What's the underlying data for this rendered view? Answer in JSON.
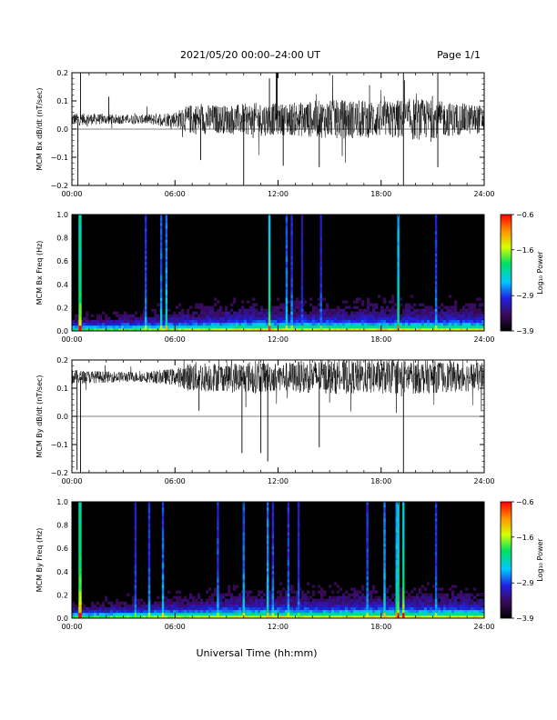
{
  "header": {
    "title": "2021/05/20  00:00–24:00 UT",
    "page": "Page 1/1"
  },
  "xlabel": "Universal Time (hh:mm)",
  "chart_data": [
    {
      "type": "line",
      "ylabel": "MCM Bx dB/dt (nT/sec)",
      "xlim": [
        0,
        24
      ],
      "ylim": [
        -0.2,
        0.2
      ],
      "x_ticks": [
        "00:00",
        "06:00",
        "12:00",
        "18:00",
        "24:00"
      ],
      "y_ticks": [
        "0.2",
        "0.1",
        "0.0",
        "−0.1",
        "−0.2"
      ],
      "baseline": 0.035,
      "activity": [
        {
          "t": 0.0,
          "amp": 0.022
        },
        {
          "t": 2.0,
          "amp": 0.018
        },
        {
          "t": 4.0,
          "amp": 0.016
        },
        {
          "t": 6.0,
          "amp": 0.028
        },
        {
          "t": 7.0,
          "amp": 0.055
        },
        {
          "t": 9.0,
          "amp": 0.05
        },
        {
          "t": 11.0,
          "amp": 0.06
        },
        {
          "t": 12.0,
          "amp": 0.055
        },
        {
          "t": 14.0,
          "amp": 0.065
        },
        {
          "t": 16.0,
          "amp": 0.07
        },
        {
          "t": 18.0,
          "amp": 0.065
        },
        {
          "t": 20.0,
          "amp": 0.075
        },
        {
          "t": 22.0,
          "amp": 0.06
        },
        {
          "t": 24.0,
          "amp": 0.05
        }
      ],
      "spikes": [
        {
          "t": 0.35,
          "y": -0.2
        },
        {
          "t": 0.5,
          "y": 0.2
        },
        {
          "t": 2.15,
          "y": 0.115
        },
        {
          "t": 7.5,
          "y": -0.11
        },
        {
          "t": 10.0,
          "y": -0.195
        },
        {
          "t": 11.5,
          "y": 0.18
        },
        {
          "t": 11.9,
          "y": 0.2
        },
        {
          "t": 11.95,
          "y": 0.2
        },
        {
          "t": 12.3,
          "y": -0.13
        },
        {
          "t": 14.4,
          "y": -0.135
        },
        {
          "t": 19.3,
          "y": -0.2
        },
        {
          "t": 19.3,
          "y": 0.2
        },
        {
          "t": 21.3,
          "y": 0.2
        },
        {
          "t": 21.3,
          "y": -0.135
        }
      ]
    },
    {
      "type": "heatmap",
      "ylabel": "MCM Bx Freq (Hz)",
      "xlim": [
        0,
        24
      ],
      "ylim": [
        0,
        1
      ],
      "x_ticks": [
        "00:00",
        "06:00",
        "12:00",
        "18:00",
        "24:00"
      ],
      "y_ticks": [
        "1.0",
        "0.8",
        "0.6",
        "0.4",
        "0.2",
        "0.0"
      ],
      "colorbar": {
        "label": "Log₁₀ Power",
        "range": [
          -3.9,
          -0.6
        ],
        "ticks": [
          "−0.6",
          "−1.6",
          "−2.9",
          "−3.9"
        ]
      },
      "bright_columns": [
        {
          "t": 0.45,
          "level": 0.75
        },
        {
          "t": 0.5,
          "level": 0.8
        },
        {
          "t": 4.3,
          "level": 0.45
        },
        {
          "t": 5.2,
          "level": 0.5
        },
        {
          "t": 5.5,
          "level": 0.55
        },
        {
          "t": 11.5,
          "level": 0.7
        },
        {
          "t": 12.5,
          "level": 0.5
        },
        {
          "t": 12.8,
          "level": 0.45
        },
        {
          "t": 13.4,
          "level": 0.35
        },
        {
          "t": 14.5,
          "level": 0.4
        },
        {
          "t": 19.0,
          "level": 0.65
        },
        {
          "t": 21.2,
          "level": 0.45
        }
      ]
    },
    {
      "type": "line",
      "ylabel": "MCM By dB/dt (nT/sec)",
      "xlim": [
        0,
        24
      ],
      "ylim": [
        -0.2,
        0.2
      ],
      "x_ticks": [
        "00:00",
        "06:00",
        "12:00",
        "18:00",
        "24:00"
      ],
      "y_ticks": [
        "0.2",
        "0.1",
        "0.0",
        "−0.1",
        "−0.2"
      ],
      "baseline": 0.14,
      "activity": [
        {
          "t": 0.0,
          "amp": 0.025
        },
        {
          "t": 2.0,
          "amp": 0.02
        },
        {
          "t": 4.0,
          "amp": 0.018
        },
        {
          "t": 6.0,
          "amp": 0.03
        },
        {
          "t": 7.0,
          "amp": 0.055
        },
        {
          "t": 9.0,
          "amp": 0.05
        },
        {
          "t": 11.0,
          "amp": 0.06
        },
        {
          "t": 12.0,
          "amp": 0.05
        },
        {
          "t": 14.0,
          "amp": 0.06
        },
        {
          "t": 16.0,
          "amp": 0.06
        },
        {
          "t": 18.0,
          "amp": 0.06
        },
        {
          "t": 20.0,
          "amp": 0.06
        },
        {
          "t": 22.0,
          "amp": 0.055
        },
        {
          "t": 24.0,
          "amp": 0.05
        }
      ],
      "spikes": [
        {
          "t": 0.3,
          "y": -0.19
        },
        {
          "t": 0.5,
          "y": -0.2
        },
        {
          "t": 7.4,
          "y": 0.02
        },
        {
          "t": 9.9,
          "y": -0.13
        },
        {
          "t": 11.0,
          "y": -0.13
        },
        {
          "t": 11.4,
          "y": -0.16
        },
        {
          "t": 14.4,
          "y": -0.11
        },
        {
          "t": 19.3,
          "y": -0.2
        }
      ]
    },
    {
      "type": "heatmap",
      "ylabel": "MCM By Freq (Hz)",
      "xlim": [
        0,
        24
      ],
      "ylim": [
        0,
        1
      ],
      "x_ticks": [
        "00:00",
        "06:00",
        "12:00",
        "18:00",
        "24:00"
      ],
      "y_ticks": [
        "1.0",
        "0.8",
        "0.6",
        "0.4",
        "0.2",
        "0.0"
      ],
      "colorbar": {
        "label": "Log₁₀ Power",
        "range": [
          -3.9,
          -0.6
        ],
        "ticks": [
          "−0.6",
          "−1.6",
          "−2.9",
          "−3.9"
        ]
      },
      "bright_columns": [
        {
          "t": 0.45,
          "level": 0.8
        },
        {
          "t": 0.5,
          "level": 0.85
        },
        {
          "t": 3.7,
          "level": 0.4
        },
        {
          "t": 4.5,
          "level": 0.45
        },
        {
          "t": 5.3,
          "level": 0.5
        },
        {
          "t": 8.5,
          "level": 0.45
        },
        {
          "t": 10.0,
          "level": 0.5
        },
        {
          "t": 11.4,
          "level": 0.55
        },
        {
          "t": 11.7,
          "level": 0.45
        },
        {
          "t": 12.6,
          "level": 0.45
        },
        {
          "t": 13.2,
          "level": 0.4
        },
        {
          "t": 17.2,
          "level": 0.45
        },
        {
          "t": 18.2,
          "level": 0.55
        },
        {
          "t": 18.9,
          "level": 0.6
        },
        {
          "t": 19.0,
          "level": 0.7
        },
        {
          "t": 19.3,
          "level": 0.75
        },
        {
          "t": 21.2,
          "level": 0.45
        }
      ]
    }
  ]
}
